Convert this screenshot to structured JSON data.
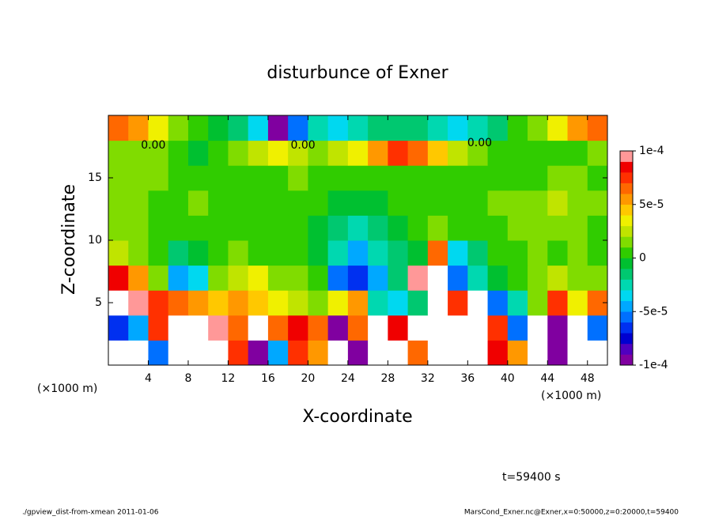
{
  "chart_data": {
    "type": "heatmap",
    "title": "disturbunce of Exner",
    "x_label": "X-coordinate",
    "y_label": "Z-coordinate",
    "x_unit": "(×1000 m)",
    "y_unit": "(×1000 m)",
    "time_label": "t=59400 s",
    "footer_left": "./gpview_dist-from-xmean  2011-01-06",
    "footer_right": "MarsCond_Exner.nc@Exner,x=0:50000,z=0:20000,t=59400",
    "xlim": [
      0,
      50
    ],
    "ylim": [
      0,
      20
    ],
    "xticks": [
      4,
      8,
      12,
      16,
      20,
      24,
      28,
      32,
      36,
      40,
      44,
      48
    ],
    "yticks": [
      5,
      10,
      15
    ],
    "x": [
      1,
      3,
      5,
      7,
      9,
      11,
      13,
      15,
      17,
      19,
      21,
      23,
      25,
      27,
      29,
      31,
      33,
      35,
      37,
      39,
      41,
      43,
      45,
      47,
      49
    ],
    "y": [
      1,
      3,
      5,
      7,
      9,
      11,
      13,
      15,
      17,
      19
    ],
    "values": [
      [
        -0.00013,
        -0.00013,
        -6e-05,
        0.00013,
        0.00013,
        0.00012,
        7e-05,
        -9e-05,
        -5e-05,
        7e-05,
        5e-05,
        -0.00013,
        -9e-05,
        0.00013,
        0.00012,
        6e-05,
        0.00013,
        0.00013,
        0.00013,
        8e-05,
        5e-05,
        0.00012,
        -9e-05,
        -0.00012,
        -0.00013
      ],
      [
        -7e-05,
        -5e-05,
        7e-05,
        0.00012,
        0.00011,
        9e-05,
        6e-05,
        0.00012,
        6e-05,
        8e-05,
        6e-05,
        -9e-05,
        6e-05,
        0.00011,
        8e-05,
        0.00012,
        0.00012,
        0.00013,
        0.00011,
        7e-05,
        -6e-05,
        0.00012,
        -9e-05,
        0.00011,
        -6e-05
      ],
      [
        0.00012,
        9e-05,
        7e-05,
        6e-05,
        5e-05,
        4e-05,
        5e-05,
        4e-05,
        3e-05,
        2e-05,
        1e-05,
        3e-05,
        5e-05,
        -3e-05,
        -4e-05,
        -2e-05,
        0.00011,
        7e-05,
        0.00011,
        -6e-05,
        -3e-05,
        1e-05,
        7e-05,
        3e-05,
        6e-05
      ],
      [
        8e-05,
        5e-05,
        1e-05,
        -5e-05,
        -4e-05,
        1e-05,
        2e-05,
        3e-05,
        1e-05,
        1e-05,
        0,
        -6e-05,
        -7e-05,
        -5e-05,
        -2e-05,
        9e-05,
        0.00011,
        -6e-05,
        -3e-05,
        -1e-05,
        0,
        1e-05,
        2e-05,
        1e-05,
        1e-05
      ],
      [
        2e-05,
        1e-05,
        0,
        -2e-05,
        -1e-05,
        0,
        1e-05,
        0,
        0,
        0,
        -1e-05,
        -3e-05,
        -5e-05,
        -3e-05,
        -2e-05,
        -1e-05,
        6e-05,
        -4e-05,
        -2e-05,
        0,
        0,
        1e-05,
        0,
        1e-05,
        0
      ],
      [
        1e-05,
        1e-05,
        0,
        0,
        0,
        0,
        0,
        0,
        0,
        0,
        -1e-05,
        -2e-05,
        -3e-05,
        -2e-05,
        -1e-05,
        0,
        1e-05,
        0,
        0,
        0,
        1e-05,
        1e-05,
        1e-05,
        1e-05,
        0
      ],
      [
        1e-05,
        1e-05,
        0,
        0,
        1e-05,
        0,
        0,
        0,
        0,
        0,
        0,
        -1e-05,
        -1e-05,
        -1e-05,
        0,
        0,
        0,
        0,
        0,
        1e-05,
        1e-05,
        1e-05,
        2e-05,
        1e-05,
        1e-05
      ],
      [
        1e-05,
        1e-05,
        1e-05,
        0,
        0,
        0,
        0,
        0,
        0,
        1e-05,
        0,
        0,
        0,
        0,
        0,
        0,
        0,
        0,
        0,
        0,
        0,
        0,
        1e-05,
        1e-05,
        0
      ],
      [
        1e-05,
        1e-05,
        1e-05,
        0,
        -1e-05,
        0,
        1e-05,
        2e-05,
        3e-05,
        2e-05,
        1e-05,
        2e-05,
        3e-05,
        5e-05,
        7e-05,
        6e-05,
        4e-05,
        2e-05,
        1e-05,
        0,
        0,
        0,
        0,
        0,
        1e-05
      ],
      [
        6e-05,
        5e-05,
        3e-05,
        1e-05,
        0,
        -1e-05,
        -2e-05,
        -4e-05,
        -9e-05,
        -6e-05,
        -3e-05,
        -4e-05,
        -3e-05,
        -2e-05,
        -2e-05,
        -2e-05,
        -3e-05,
        -4e-05,
        -3e-05,
        -2e-05,
        0,
        1e-05,
        3e-05,
        5e-05,
        6e-05
      ]
    ],
    "clim": [
      -0.0001,
      0.0001
    ],
    "cticks": [
      {
        "value": 0.0001,
        "label": "1e-4"
      },
      {
        "value": 5e-05,
        "label": "5e-5"
      },
      0,
      {
        "value": -5e-05,
        "label": "-5e-5"
      },
      {
        "value": -0.0001,
        "label": "-1e-4"
      }
    ],
    "colors": [
      "#8000a0",
      "#5000c0",
      "#0000d0",
      "#0030f0",
      "#0070ff",
      "#00a8ff",
      "#00d8f0",
      "#00d8b0",
      "#00c870",
      "#00c030",
      "#30cc00",
      "#80dc00",
      "#c0e400",
      "#f0f000",
      "#ffc800",
      "#ff9800",
      "#ff6800",
      "#ff3000",
      "#f00000",
      "#ff9898"
    ],
    "out_of_range_color": "#ffffff",
    "annotations": [
      {
        "x": 4.5,
        "y": 17.6,
        "text": "0.00"
      },
      {
        "x": 19.5,
        "y": 17.6,
        "text": "0.00"
      },
      {
        "x": 37.2,
        "y": 17.8,
        "text": "0.00"
      }
    ]
  }
}
